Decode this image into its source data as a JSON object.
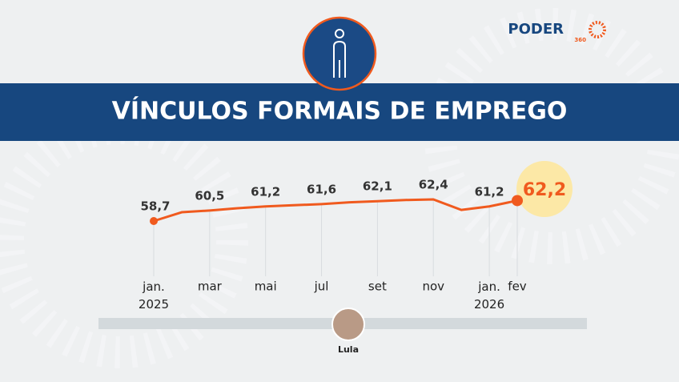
{
  "chart_data": {
    "type": "line",
    "title": "VÍNCULOS FORMAIS DE EMPREGO",
    "logo": "PODER",
    "logo_sub": "360",
    "person": "Lula",
    "categories": [
      "jan. 2025",
      null,
      "mar",
      null,
      "mai",
      null,
      "jul",
      null,
      "set",
      null,
      "nov",
      null,
      "jan. 2026",
      "fev"
    ],
    "series": [
      {
        "name": "Vínculos formais",
        "color": "#f05a1e",
        "values": [
          58.7,
          60.2,
          60.5,
          60.9,
          61.2,
          61.4,
          61.6,
          61.9,
          62.1,
          62.3,
          62.4,
          60.6,
          61.2,
          62.2
        ],
        "value_labels": [
          "58,7",
          null,
          "60,5",
          null,
          "61,2",
          null,
          "61,6",
          null,
          "62,1",
          null,
          "62,4",
          null,
          "61,2",
          "62,2"
        ]
      }
    ]
  }
}
